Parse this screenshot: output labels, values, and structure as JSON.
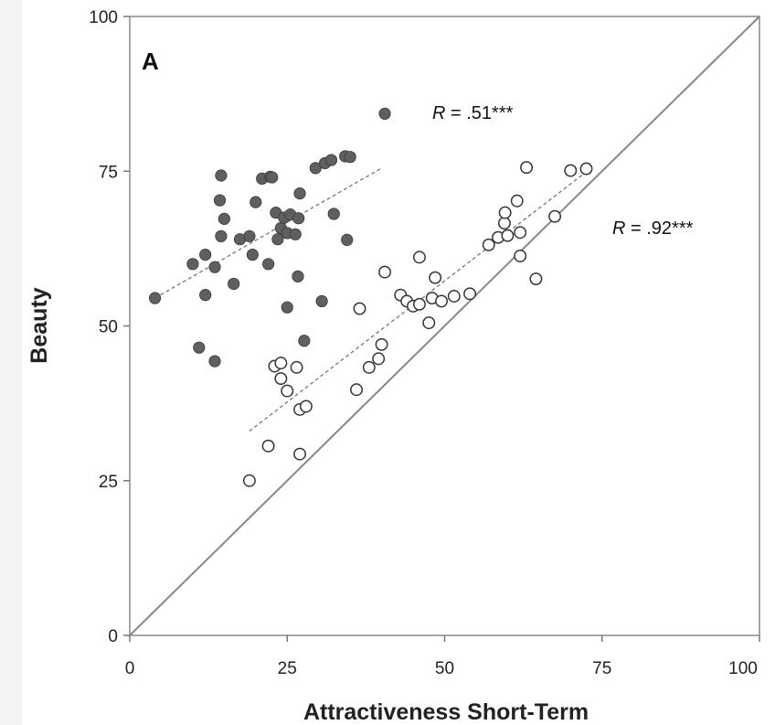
{
  "chart_data": {
    "type": "scatter",
    "panel_label": "A",
    "xlabel": "Attractiveness Short-Term",
    "ylabel": "Beauty",
    "xlim": [
      0,
      100
    ],
    "ylim": [
      0,
      100
    ],
    "x_ticks": [
      "0",
      "25",
      "50",
      "75",
      "100"
    ],
    "y_ticks": [
      "0",
      "25",
      "50",
      "75",
      "100"
    ],
    "identity_line": true,
    "grid": false,
    "series": [
      {
        "marker": "filled",
        "color": "#5f5f5f",
        "r_label": {
          "italic": "R",
          "text": " = .51***"
        },
        "trend": {
          "x": [
            4,
            40
          ],
          "y": [
            54.5,
            75.5
          ]
        },
        "points": [
          {
            "x": 4,
            "y": 54.5
          },
          {
            "x": 10,
            "y": 60
          },
          {
            "x": 11,
            "y": 46.5
          },
          {
            "x": 12,
            "y": 61.5
          },
          {
            "x": 12,
            "y": 55
          },
          {
            "x": 13.5,
            "y": 59.5
          },
          {
            "x": 13.5,
            "y": 44.3
          },
          {
            "x": 14.3,
            "y": 70.3
          },
          {
            "x": 14.5,
            "y": 74.3
          },
          {
            "x": 14.5,
            "y": 64.5
          },
          {
            "x": 15,
            "y": 67.3
          },
          {
            "x": 16.5,
            "y": 56.8
          },
          {
            "x": 17.5,
            "y": 64
          },
          {
            "x": 19,
            "y": 64.5
          },
          {
            "x": 19.5,
            "y": 61.5
          },
          {
            "x": 20,
            "y": 70
          },
          {
            "x": 21,
            "y": 73.8
          },
          {
            "x": 22,
            "y": 60
          },
          {
            "x": 22.3,
            "y": 74.1
          },
          {
            "x": 22.6,
            "y": 74
          },
          {
            "x": 23.2,
            "y": 68.3
          },
          {
            "x": 23.5,
            "y": 64
          },
          {
            "x": 24,
            "y": 65.8
          },
          {
            "x": 24.5,
            "y": 67.5
          },
          {
            "x": 25,
            "y": 53
          },
          {
            "x": 25,
            "y": 65
          },
          {
            "x": 25.5,
            "y": 68
          },
          {
            "x": 26.3,
            "y": 64.8
          },
          {
            "x": 26.7,
            "y": 58
          },
          {
            "x": 26.8,
            "y": 67.4
          },
          {
            "x": 27,
            "y": 71.4
          },
          {
            "x": 27.7,
            "y": 47.6
          },
          {
            "x": 29.5,
            "y": 75.5
          },
          {
            "x": 30.5,
            "y": 54
          },
          {
            "x": 31,
            "y": 76.3
          },
          {
            "x": 32,
            "y": 76.8
          },
          {
            "x": 32.4,
            "y": 68.1
          },
          {
            "x": 34.2,
            "y": 77.4
          },
          {
            "x": 34.5,
            "y": 63.9
          },
          {
            "x": 35,
            "y": 77.3
          },
          {
            "x": 40.5,
            "y": 84.3
          }
        ]
      },
      {
        "marker": "open",
        "color": "#ffffff",
        "r_label": {
          "italic": "R",
          "text": " = .92***"
        },
        "trend": {
          "x": [
            19,
            72
          ],
          "y": [
            33,
            74.5
          ]
        },
        "points": [
          {
            "x": 19,
            "y": 25
          },
          {
            "x": 22,
            "y": 30.6
          },
          {
            "x": 23,
            "y": 43.5
          },
          {
            "x": 24,
            "y": 41.5
          },
          {
            "x": 24,
            "y": 44
          },
          {
            "x": 25,
            "y": 39.5
          },
          {
            "x": 26.5,
            "y": 43.3
          },
          {
            "x": 27,
            "y": 29.3
          },
          {
            "x": 27,
            "y": 36.5
          },
          {
            "x": 28,
            "y": 37
          },
          {
            "x": 36,
            "y": 39.7
          },
          {
            "x": 36.5,
            "y": 52.8
          },
          {
            "x": 38,
            "y": 43.3
          },
          {
            "x": 39.5,
            "y": 44.7
          },
          {
            "x": 40,
            "y": 47
          },
          {
            "x": 40.5,
            "y": 58.7
          },
          {
            "x": 43,
            "y": 55
          },
          {
            "x": 44,
            "y": 54
          },
          {
            "x": 45,
            "y": 53.2
          },
          {
            "x": 46,
            "y": 53.5
          },
          {
            "x": 46,
            "y": 61.1
          },
          {
            "x": 47.5,
            "y": 50.5
          },
          {
            "x": 48,
            "y": 54.5
          },
          {
            "x": 48.5,
            "y": 57.8
          },
          {
            "x": 49.5,
            "y": 54
          },
          {
            "x": 51.5,
            "y": 54.8
          },
          {
            "x": 54,
            "y": 55.2
          },
          {
            "x": 57,
            "y": 63.1
          },
          {
            "x": 58.5,
            "y": 64.3
          },
          {
            "x": 59.5,
            "y": 66.6
          },
          {
            "x": 59.6,
            "y": 68.3
          },
          {
            "x": 60,
            "y": 64.6
          },
          {
            "x": 61.5,
            "y": 70.2
          },
          {
            "x": 62,
            "y": 61.3
          },
          {
            "x": 62,
            "y": 65.1
          },
          {
            "x": 63,
            "y": 75.6
          },
          {
            "x": 64.5,
            "y": 57.6
          },
          {
            "x": 67.5,
            "y": 67.7
          },
          {
            "x": 70,
            "y": 75.1
          },
          {
            "x": 72.5,
            "y": 75.4
          }
        ]
      }
    ]
  }
}
